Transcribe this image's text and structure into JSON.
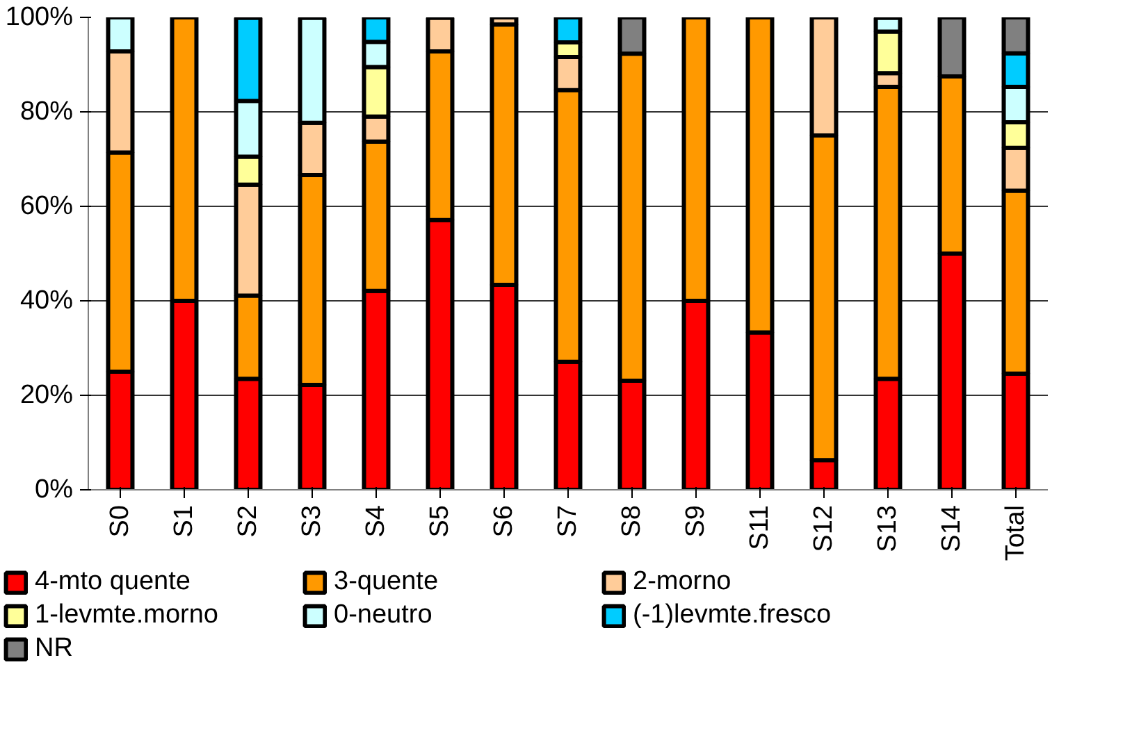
{
  "chart_data": {
    "type": "bar",
    "stacked": true,
    "categories": [
      "S0",
      "S1",
      "S2",
      "S3",
      "S4",
      "S5",
      "S6",
      "S7",
      "S8",
      "S9",
      "S11",
      "S12",
      "S13",
      "S14",
      "Total"
    ],
    "series": [
      {
        "name": "4-mto quente",
        "color": "#ff0000",
        "values": [
          25,
          40,
          23.5,
          22.2,
          42.1,
          57.1,
          43.4,
          27.1,
          23.1,
          40,
          33.3,
          6.3,
          23.5,
          50,
          24.6
        ]
      },
      {
        "name": "3-quente",
        "color": "#ff9900",
        "values": [
          46.4,
          60,
          17.6,
          44.4,
          31.6,
          35.7,
          55.1,
          57.5,
          69.2,
          60,
          66.7,
          68.7,
          61.8,
          37.5,
          38.7
        ]
      },
      {
        "name": "2-morno",
        "color": "#ffcc99",
        "values": [
          21.4,
          null,
          23.5,
          11.1,
          5.3,
          7.1,
          1.5,
          7.0,
          null,
          null,
          null,
          25,
          2.9,
          null,
          9.1
        ]
      },
      {
        "name": "1-levmte.morno",
        "color": "#ffff99",
        "values": [
          null,
          null,
          5.9,
          null,
          10.5,
          null,
          null,
          3.1,
          null,
          null,
          null,
          null,
          8.8,
          null,
          5.4
        ]
      },
      {
        "name": "0-neutro",
        "color": "#ccffff",
        "values": [
          7.2,
          null,
          11.8,
          22.2,
          5.3,
          null,
          null,
          null,
          null,
          null,
          null,
          null,
          2.9,
          null,
          7.5
        ]
      },
      {
        "name": "(-1)levmte.fresco",
        "color": "#00ccff",
        "values": [
          null,
          null,
          17.6,
          null,
          5.3,
          null,
          null,
          5.3,
          null,
          null,
          null,
          null,
          null,
          null,
          7.1
        ]
      },
      {
        "name": "NR",
        "color": "#808080",
        "values": [
          null,
          null,
          null,
          null,
          null,
          null,
          null,
          null,
          7.7,
          null,
          null,
          null,
          null,
          12.5,
          7.6
        ]
      }
    ],
    "ylim": [
      0,
      100
    ],
    "yticks": [
      {
        "value": 0,
        "label": "0%"
      },
      {
        "value": 20,
        "label": "20%"
      },
      {
        "value": 40,
        "label": "40%"
      },
      {
        "value": 60,
        "label": "60%"
      },
      {
        "value": 80,
        "label": "80%"
      },
      {
        "value": 100,
        "label": "100%"
      }
    ],
    "grid": "y",
    "legend": "bottom"
  }
}
